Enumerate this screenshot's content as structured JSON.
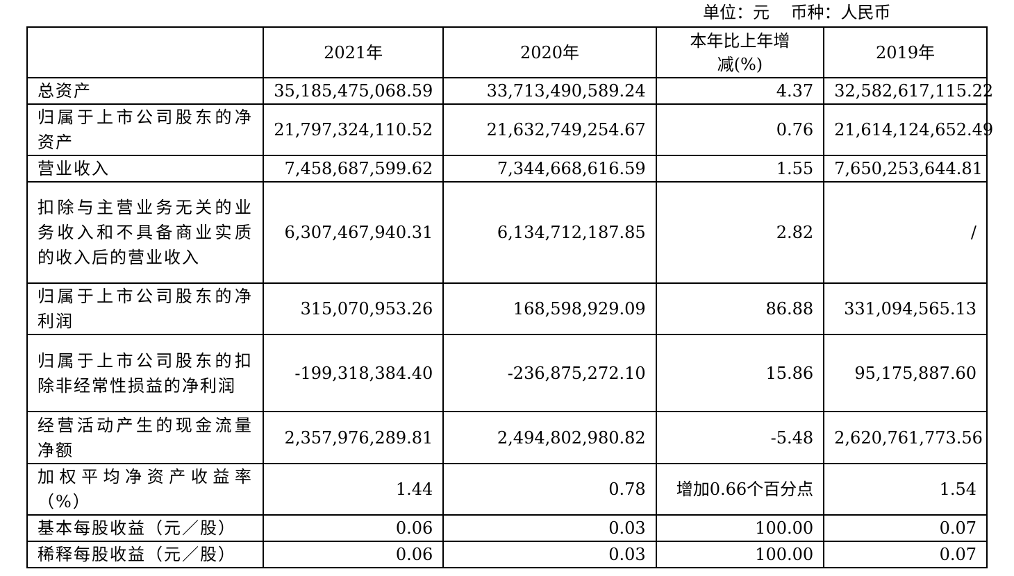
{
  "unit_line": "单位：元    币种：人民币",
  "table": {
    "headers": [
      "",
      "2021年",
      "2020年",
      "本年比上年增减(%)",
      "2019年"
    ],
    "rows": [
      {
        "label": "总资产",
        "v2021": "35,185,475,068.59",
        "v2020": "33,713,490,589.24",
        "change": "4.37",
        "v2019": "32,582,617,115.22"
      },
      {
        "label": "归属于上市公司股东的净资产",
        "v2021": "21,797,324,110.52",
        "v2020": "21,632,749,254.67",
        "change": "0.76",
        "v2019": "21,614,124,652.49"
      },
      {
        "label": "营业收入",
        "v2021": "7,458,687,599.62",
        "v2020": "7,344,668,616.59",
        "change": "1.55",
        "v2019": "7,650,253,644.81"
      },
      {
        "label": "扣除与主营业务无关的业务收入和不具备商业实质的收入后的营业收入",
        "v2021": "6,307,467,940.31",
        "v2020": "6,134,712,187.85",
        "change": "2.82",
        "v2019": "/"
      },
      {
        "label": "归属于上市公司股东的净利润",
        "v2021": "315,070,953.26",
        "v2020": "168,598,929.09",
        "change": "86.88",
        "v2019": "331,094,565.13"
      },
      {
        "label": "归属于上市公司股东的扣除非经常性损益的净利润",
        "v2021": "-199,318,384.40",
        "v2020": "-236,875,272.10",
        "change": "15.86",
        "v2019": "95,175,887.60"
      },
      {
        "label": "经营活动产生的现金流量净额",
        "v2021": "2,357,976,289.81",
        "v2020": "2,494,802,980.82",
        "change": "-5.48",
        "v2019": "2,620,761,773.56"
      },
      {
        "label": "加权平均净资产收益率（%）",
        "v2021": "1.44",
        "v2020": "0.78",
        "change": "增加0.66个百分点",
        "v2019": "1.54"
      },
      {
        "label": "基本每股收益（元／股）",
        "v2021": "0.06",
        "v2020": "0.03",
        "change": "100.00",
        "v2019": "0.07"
      },
      {
        "label": "稀释每股收益（元／股）",
        "v2021": "0.06",
        "v2020": "0.03",
        "change": "100.00",
        "v2019": "0.07"
      }
    ]
  }
}
